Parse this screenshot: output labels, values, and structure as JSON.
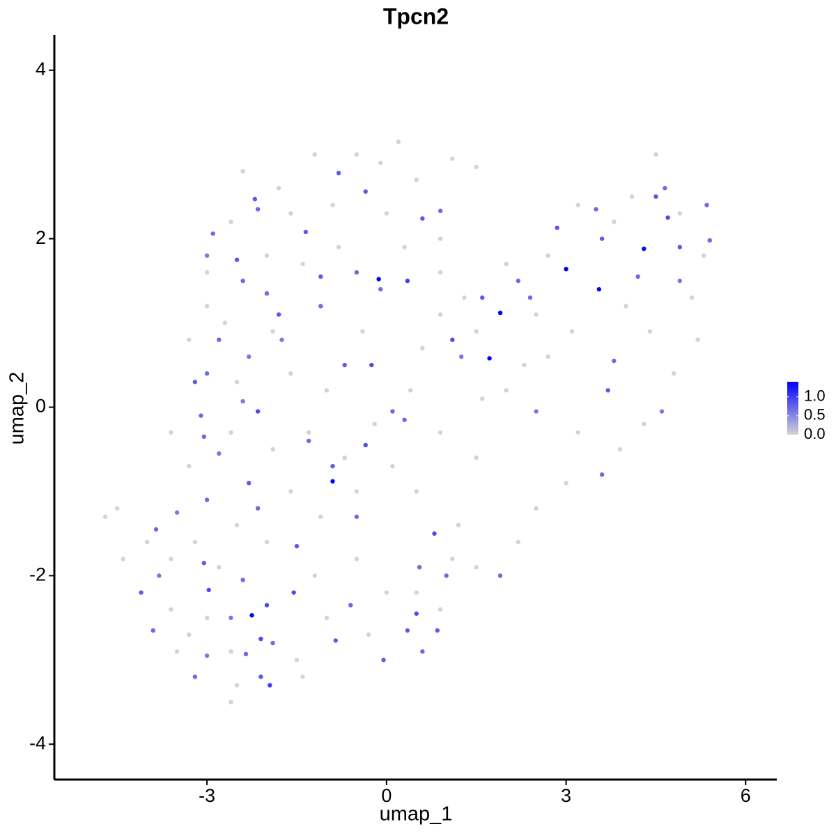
{
  "chart_data": {
    "type": "scatter",
    "title": "Tpcn2",
    "x_label": "umap_1",
    "y_label": "umap_2",
    "xlim": [
      -5.55,
      6.52
    ],
    "ylim": [
      -4.42,
      4.42
    ],
    "xticks": [
      -3,
      0,
      3,
      6
    ],
    "yticks": [
      -4,
      -2,
      0,
      2,
      4
    ],
    "colors": [
      "#d3d3d3",
      "#0000ff"
    ],
    "color_lim": [
      0,
      1.4
    ],
    "color_ticks": [
      {
        "value": 0,
        "label": "0.0"
      },
      {
        "value": 0.5,
        "label": "0.5"
      },
      {
        "value": 1,
        "label": "1.0"
      }
    ],
    "x": [
      -2.4,
      -1.8,
      -1.2,
      -0.5,
      -0.1,
      0.2,
      0.5,
      1.1,
      1.5,
      -2.6,
      -1.6,
      -0.9,
      0,
      0.9,
      -3.0,
      -2.7,
      -2.0,
      -1.4,
      -0.8,
      0.3,
      0.9,
      1.3,
      -2.5,
      -1.6,
      -0.4,
      0.6,
      0.9,
      1.5,
      -3.6,
      -3.3,
      -2.6,
      -1.9,
      -1.3,
      -0.7,
      -0.2,
      0.4,
      0.9,
      1.5,
      2.0,
      2.7,
      3.1,
      2.5,
      2.0,
      2.7,
      3.2,
      3.8,
      4.1,
      4.5,
      4.9,
      5.3,
      5.1,
      5.2,
      4.8,
      4.4,
      4.0,
      4.3,
      3.9,
      3.2,
      3.0,
      2.5,
      2.2,
      1.5,
      1.2,
      0.5,
      0.1,
      -0.5,
      -1.1,
      -1.6,
      -2.5,
      -3.2,
      -3.6,
      -4.0,
      -4.5,
      -4.7,
      -4.4,
      -3.6,
      -3.3,
      -3.0,
      -2.6,
      -2.5,
      -2.6,
      -1.5,
      -1.4,
      -1.0,
      -0.3,
      0,
      0.5,
      0.9,
      1.1,
      -0.5,
      -1.2,
      -2.0,
      -2.8,
      -3.5,
      1.6,
      2.3,
      -1.0,
      -1.9,
      -3.3,
      -3.0,
      -2.2,
      -2.15,
      -2.9,
      -3.0,
      -2.5,
      -2.4,
      -2.0,
      -1.8,
      -1.75,
      -2.8,
      -3.0,
      -2.3,
      -2.15,
      -2.4,
      -3.05,
      -3.1,
      -2.8,
      -2.3,
      -2.15,
      -3.0,
      -3.5,
      -3.85,
      -3.8,
      -4.1,
      -3.9,
      -3.05,
      -2.97,
      -2.4,
      -2.6,
      -2.0,
      -1.9,
      -2.1,
      -2.35,
      -1.95,
      -2.1,
      -3.0,
      -3.2,
      -1.5,
      -1.55,
      -0.85,
      -0.6,
      -0.5,
      0.1,
      -0.7,
      -0.25,
      -0.1,
      -0.5,
      -1.1,
      -1.1,
      -1.35,
      -0.8,
      -0.35,
      0.6,
      0.9,
      0.35,
      1.1,
      1.6,
      2.2,
      2.4,
      2.85,
      3.5,
      3.6,
      4.2,
      4.5,
      4.65,
      4.7,
      4.9,
      5.35,
      5.4,
      4.9,
      3.8,
      3.7,
      3.6,
      4.6,
      2.5,
      0.8,
      0.55,
      0.5,
      0.35,
      0.6,
      0.85,
      -0.05,
      1.0,
      1.9,
      -0.35,
      -3.2,
      -1.3,
      -0.9,
      0.3,
      1.25,
      -0.13,
      3.0,
      3.55,
      4.3,
      1.9,
      1.72,
      -0.9,
      -2.25
    ],
    "y": [
      2.8,
      2.6,
      3.0,
      3.0,
      2.9,
      3.15,
      2.7,
      2.95,
      2.85,
      2.2,
      2.3,
      2.4,
      2.3,
      2.0,
      1.2,
      1.0,
      1.8,
      1.7,
      1.9,
      1.9,
      1.6,
      1.3,
      0.3,
      0.4,
      0.9,
      0.7,
      1.1,
      0.9,
      -0.3,
      -0.7,
      -0.3,
      -0.5,
      -0.3,
      -0.6,
      -0.2,
      0.2,
      -0.3,
      -0.6,
      0.2,
      0.6,
      0.9,
      1.1,
      1.7,
      1.8,
      2.4,
      2.2,
      2.5,
      3.0,
      2.3,
      1.8,
      1.3,
      0.8,
      0.4,
      0.9,
      1.2,
      -0.2,
      -0.5,
      -0.3,
      -0.9,
      -1.2,
      -1.6,
      -1.9,
      -1.4,
      -1.0,
      -0.7,
      -1.0,
      -1.3,
      -1.0,
      -1.4,
      -1.6,
      -1.8,
      -1.6,
      -1.2,
      -1.3,
      -1.8,
      -2.4,
      -2.7,
      -2.5,
      -2.9,
      -3.3,
      -3.5,
      -3.0,
      -3.2,
      -2.5,
      -2.7,
      -2.2,
      -2.2,
      -2.4,
      -1.8,
      -1.8,
      -2.0,
      -1.6,
      -1.9,
      -2.9,
      0.1,
      0.5,
      0.2,
      0.9,
      0.8,
      1.6,
      2.47,
      2.35,
      2.06,
      1.8,
      1.75,
      1.5,
      1.35,
      1.1,
      0.8,
      0.8,
      0.4,
      0.6,
      -0.05,
      0.07,
      -0.35,
      -0.1,
      -0.55,
      -0.9,
      -1.2,
      -1.1,
      -1.25,
      -1.45,
      -2.0,
      -2.2,
      -2.65,
      -1.85,
      -2.17,
      -2.05,
      -2.5,
      -2.35,
      -2.8,
      -2.75,
      -2.93,
      -3.3,
      -3.2,
      -2.95,
      -3.2,
      -1.65,
      -2.2,
      -2.77,
      -2.35,
      -1.3,
      -0.05,
      0.5,
      0.5,
      1.4,
      1.6,
      1.55,
      1.2,
      2.08,
      2.78,
      2.56,
      2.24,
      2.33,
      1.5,
      0.8,
      1.3,
      1.5,
      1.3,
      2.13,
      2.35,
      2.0,
      1.55,
      2.5,
      2.6,
      2.25,
      1.9,
      2.4,
      1.98,
      1.5,
      0.55,
      0.2,
      -0.8,
      -0.05,
      -0.05,
      -1.5,
      -1.9,
      -2.45,
      -2.65,
      -2.9,
      -2.65,
      -3.0,
      -2.0,
      -2.0,
      -0.45,
      0.3,
      -0.4,
      -0.7,
      -0.15,
      0.6,
      1.52,
      1.64,
      1.4,
      1.88,
      1.12,
      0.58,
      -0.88,
      -2.47
    ],
    "values": [
      0,
      0,
      0,
      0,
      0,
      0,
      0,
      0,
      0,
      0,
      0,
      0,
      0,
      0,
      0,
      0,
      0,
      0,
      0,
      0,
      0,
      0,
      0,
      0,
      0,
      0,
      0,
      0,
      0,
      0,
      0,
      0,
      0,
      0,
      0,
      0,
      0,
      0,
      0,
      0,
      0,
      0,
      0,
      0,
      0,
      0,
      0,
      0,
      0,
      0,
      0,
      0,
      0,
      0,
      0,
      0,
      0,
      0,
      0,
      0,
      0,
      0,
      0,
      0,
      0,
      0,
      0,
      0,
      0,
      0,
      0,
      0,
      0,
      0,
      0,
      0,
      0,
      0,
      0,
      0,
      0,
      0,
      0,
      0,
      0,
      0,
      0,
      0,
      0,
      0,
      0,
      0,
      0,
      0,
      0,
      0,
      0,
      0,
      0,
      0,
      0.8,
      0.7,
      0.7,
      0.6,
      0.8,
      0.7,
      0.7,
      0.8,
      0.6,
      0.7,
      0.7,
      0.6,
      0.9,
      0.6,
      0.7,
      0.7,
      0.6,
      0.8,
      0.7,
      0.7,
      0.6,
      0.7,
      0.6,
      0.8,
      0.7,
      0.8,
      0.9,
      0.7,
      0.6,
      0.9,
      0.7,
      0.9,
      0.7,
      1.0,
      0.8,
      0.6,
      0.7,
      0.8,
      0.9,
      0.8,
      0.7,
      0.7,
      0.7,
      0.8,
      0.9,
      0.7,
      0.7,
      0.8,
      0.7,
      0.8,
      0.8,
      0.8,
      0.8,
      0.7,
      1.0,
      0.9,
      0.8,
      0.7,
      0.7,
      0.8,
      0.7,
      0.8,
      0.7,
      0.8,
      0.7,
      0.9,
      0.8,
      0.7,
      0.7,
      0.6,
      0.7,
      0.8,
      0.7,
      0.6,
      0.6,
      0.9,
      0.7,
      0.9,
      0.8,
      0.7,
      0.8,
      0.8,
      0.7,
      0.7,
      0.9,
      0.8,
      0.7,
      0.8,
      0.7,
      0.6,
      1.4,
      1.4,
      1.4,
      1.4,
      1.4,
      1.4,
      1.4,
      1.4
    ]
  }
}
